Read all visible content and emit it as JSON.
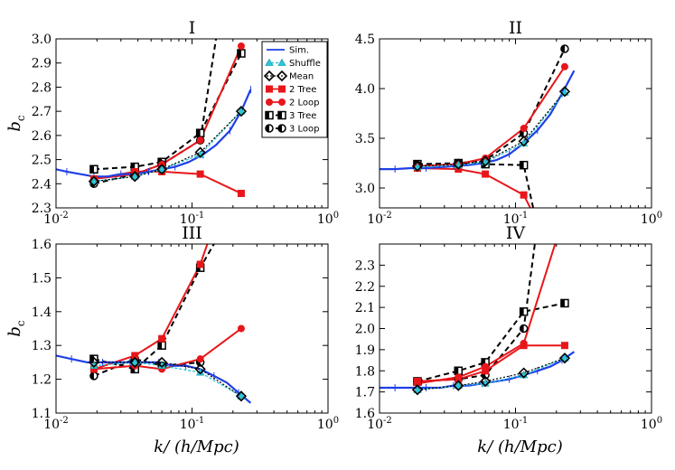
{
  "figure": {
    "xlabel": "k/     (h/Mpc)",
    "ylabel": "b_c"
  },
  "legend": [
    {
      "label": "Sim.",
      "series": "sim"
    },
    {
      "label": "Shuffle",
      "series": "shuffle"
    },
    {
      "label": "Mean",
      "series": "mean"
    },
    {
      "label": "2 Tree",
      "series": "tree2"
    },
    {
      "label": "2 Loop",
      "series": "loop2"
    },
    {
      "label": "3 Tree",
      "series": "tree3"
    },
    {
      "label": "3 Loop",
      "series": "loop3"
    }
  ],
  "colors": {
    "sim": "#1f3fe6",
    "shuffle": "#2ec8d8",
    "model2": "#e8161a",
    "model3": "#000000"
  },
  "chart_data": [
    {
      "type": "line",
      "title": "I",
      "xscale": "log",
      "xlim": [
        0.01,
        1
      ],
      "ylim": [
        2.3,
        3.0
      ],
      "yticks": [
        2.3,
        2.4,
        2.5,
        2.6,
        2.7,
        2.8,
        2.9,
        3.0
      ],
      "xticklabels": [
        "10^-2",
        "10^-1",
        "10^0"
      ],
      "series": [
        {
          "name": "Sim.",
          "key": "sim",
          "x": [
            0.01,
            0.012,
            0.015,
            0.019,
            0.024,
            0.03,
            0.038,
            0.048,
            0.06,
            0.075,
            0.095,
            0.12,
            0.15,
            0.19,
            0.23,
            0.27
          ],
          "y": [
            2.46,
            2.45,
            2.44,
            2.43,
            2.43,
            2.44,
            2.44,
            2.45,
            2.46,
            2.47,
            2.49,
            2.52,
            2.56,
            2.62,
            2.7,
            2.79
          ]
        },
        {
          "name": "Shuffle",
          "key": "shuffle",
          "x": [
            0.019,
            0.038,
            0.06,
            0.115,
            0.23
          ],
          "y": [
            2.41,
            2.43,
            2.46,
            2.52,
            2.7
          ]
        },
        {
          "name": "Mean",
          "key": "mean",
          "x": [
            0.019,
            0.038,
            0.06,
            0.115,
            0.23
          ],
          "y": [
            2.41,
            2.43,
            2.46,
            2.53,
            2.7
          ]
        },
        {
          "name": "2 Tree",
          "key": "tree2",
          "x": [
            0.019,
            0.038,
            0.06,
            0.115,
            0.23
          ],
          "y": [
            2.42,
            2.45,
            2.45,
            2.44,
            2.36
          ]
        },
        {
          "name": "2 Loop",
          "key": "loop2",
          "x": [
            0.019,
            0.038,
            0.06,
            0.115,
            0.23
          ],
          "y": [
            2.42,
            2.44,
            2.48,
            2.58,
            2.97
          ]
        },
        {
          "name": "3 Tree",
          "key": "tree3",
          "x": [
            0.019,
            0.038,
            0.06,
            0.115,
            0.23
          ],
          "y": [
            2.46,
            2.47,
            2.49,
            2.61,
            2.94
          ]
        },
        {
          "name": "3 Loop",
          "key": "loop3",
          "x": [
            0.019,
            0.038,
            0.06,
            0.115,
            0.16
          ],
          "y": [
            2.4,
            2.44,
            2.48,
            2.58,
            3.1
          ],
          "markers": [
            true,
            true,
            true,
            true,
            false
          ]
        }
      ]
    },
    {
      "type": "line",
      "title": "II",
      "xscale": "log",
      "xlim": [
        0.01,
        1
      ],
      "ylim": [
        2.8,
        4.5
      ],
      "yticks": [
        3.0,
        3.5,
        4.0,
        4.5
      ],
      "xticklabels": [
        "10^-2",
        "10^-1",
        "10^0"
      ],
      "series": [
        {
          "name": "Sim.",
          "key": "sim",
          "x": [
            0.01,
            0.013,
            0.017,
            0.022,
            0.028,
            0.035,
            0.045,
            0.057,
            0.072,
            0.09,
            0.115,
            0.145,
            0.18,
            0.22,
            0.27
          ],
          "y": [
            3.19,
            3.19,
            3.2,
            3.2,
            3.21,
            3.22,
            3.23,
            3.25,
            3.28,
            3.34,
            3.45,
            3.58,
            3.74,
            3.95,
            4.18
          ]
        },
        {
          "name": "Shuffle",
          "key": "shuffle",
          "x": [
            0.019,
            0.038,
            0.06,
            0.115,
            0.23
          ],
          "y": [
            3.21,
            3.23,
            3.26,
            3.45,
            3.96
          ]
        },
        {
          "name": "Mean",
          "key": "mean",
          "x": [
            0.019,
            0.038,
            0.06,
            0.115,
            0.23
          ],
          "y": [
            3.22,
            3.24,
            3.27,
            3.47,
            3.97
          ]
        },
        {
          "name": "2 Tree",
          "key": "tree2",
          "x": [
            0.019,
            0.038,
            0.06,
            0.115,
            0.14
          ],
          "y": [
            3.2,
            3.19,
            3.14,
            2.93,
            2.7
          ],
          "markers": [
            true,
            true,
            true,
            true,
            false
          ]
        },
        {
          "name": "2 Loop",
          "key": "loop2",
          "x": [
            0.019,
            0.038,
            0.06,
            0.115,
            0.23
          ],
          "y": [
            3.22,
            3.24,
            3.3,
            3.6,
            4.22
          ]
        },
        {
          "name": "3 Tree",
          "key": "tree3",
          "x": [
            0.019,
            0.038,
            0.06,
            0.115,
            0.14
          ],
          "y": [
            3.24,
            3.25,
            3.24,
            3.23,
            2.7
          ],
          "markers": [
            true,
            true,
            true,
            true,
            false
          ]
        },
        {
          "name": "3 Loop",
          "key": "loop3",
          "x": [
            0.019,
            0.038,
            0.06,
            0.115,
            0.23
          ],
          "y": [
            3.23,
            3.25,
            3.28,
            3.55,
            4.4
          ]
        }
      ]
    },
    {
      "type": "line",
      "title": "III",
      "xscale": "log",
      "xlim": [
        0.01,
        1
      ],
      "ylim": [
        1.1,
        1.6
      ],
      "yticks": [
        1.1,
        1.2,
        1.3,
        1.4,
        1.5,
        1.6
      ],
      "xticklabels": [
        "10^-2",
        "10^-1",
        "10^0"
      ],
      "series": [
        {
          "name": "Sim.",
          "key": "sim",
          "x": [
            0.01,
            0.013,
            0.017,
            0.022,
            0.028,
            0.035,
            0.045,
            0.057,
            0.072,
            0.09,
            0.115,
            0.145,
            0.18,
            0.22,
            0.27
          ],
          "y": [
            1.27,
            1.26,
            1.25,
            1.25,
            1.25,
            1.25,
            1.25,
            1.25,
            1.24,
            1.24,
            1.23,
            1.21,
            1.19,
            1.16,
            1.13
          ]
        },
        {
          "name": "Shuffle",
          "key": "shuffle",
          "x": [
            0.019,
            0.038,
            0.06,
            0.115,
            0.23
          ],
          "y": [
            1.24,
            1.25,
            1.24,
            1.22,
            1.15
          ]
        },
        {
          "name": "Mean",
          "key": "mean",
          "x": [
            0.019,
            0.038,
            0.06,
            0.115,
            0.23
          ],
          "y": [
            1.25,
            1.25,
            1.25,
            1.23,
            1.15
          ]
        },
        {
          "name": "2 Tree",
          "key": "tree2",
          "x": [
            0.019,
            0.038,
            0.06,
            0.115,
            0.135
          ],
          "y": [
            1.23,
            1.27,
            1.32,
            1.54,
            1.62
          ],
          "markers": [
            true,
            true,
            true,
            true,
            false
          ]
        },
        {
          "name": "2 Loop",
          "key": "loop2",
          "x": [
            0.019,
            0.038,
            0.06,
            0.115,
            0.23
          ],
          "y": [
            1.23,
            1.24,
            1.23,
            1.26,
            1.35
          ]
        },
        {
          "name": "3 Tree",
          "key": "tree3",
          "x": [
            0.019,
            0.038,
            0.06,
            0.115,
            0.155
          ],
          "y": [
            1.26,
            1.23,
            1.3,
            1.53,
            1.62
          ],
          "markers": [
            true,
            true,
            true,
            true,
            false
          ]
        },
        {
          "name": "3 Loop",
          "key": "loop3",
          "x": [
            0.019,
            0.038,
            0.06,
            0.115
          ],
          "y": [
            1.21,
            1.26,
            1.24,
            1.25
          ]
        }
      ]
    },
    {
      "type": "line",
      "title": "IV",
      "xscale": "log",
      "xlim": [
        0.01,
        1
      ],
      "ylim": [
        1.6,
        2.4
      ],
      "yticks": [
        1.6,
        1.7,
        1.8,
        1.9,
        2.0,
        2.1,
        2.2,
        2.3
      ],
      "xticklabels": [
        "10^-2",
        "10^-1",
        "10^0"
      ],
      "series": [
        {
          "name": "Sim.",
          "key": "sim",
          "x": [
            0.01,
            0.013,
            0.017,
            0.022,
            0.028,
            0.035,
            0.045,
            0.057,
            0.072,
            0.09,
            0.115,
            0.145,
            0.18,
            0.22,
            0.27
          ],
          "y": [
            1.72,
            1.72,
            1.72,
            1.72,
            1.72,
            1.73,
            1.73,
            1.74,
            1.75,
            1.76,
            1.78,
            1.8,
            1.82,
            1.85,
            1.89
          ]
        },
        {
          "name": "Shuffle",
          "key": "shuffle",
          "x": [
            0.019,
            0.038,
            0.06,
            0.115,
            0.23
          ],
          "y": [
            1.71,
            1.73,
            1.74,
            1.78,
            1.86
          ]
        },
        {
          "name": "Mean",
          "key": "mean",
          "x": [
            0.019,
            0.038,
            0.06,
            0.115,
            0.23
          ],
          "y": [
            1.71,
            1.73,
            1.75,
            1.79,
            1.86
          ]
        },
        {
          "name": "2 Tree",
          "key": "tree2",
          "x": [
            0.019,
            0.038,
            0.06,
            0.115,
            0.23
          ],
          "y": [
            1.75,
            1.76,
            1.8,
            1.92,
            1.92
          ]
        },
        {
          "name": "2 Loop",
          "key": "loop2",
          "x": [
            0.019,
            0.038,
            0.06,
            0.115,
            0.2
          ],
          "y": [
            1.74,
            1.77,
            1.82,
            1.93,
            2.42
          ],
          "markers": [
            true,
            true,
            true,
            true,
            false
          ]
        },
        {
          "name": "3 Tree",
          "key": "tree3",
          "x": [
            0.019,
            0.038,
            0.06,
            0.115,
            0.23
          ],
          "y": [
            1.75,
            1.8,
            1.84,
            2.08,
            2.12
          ]
        },
        {
          "name": "3 Loop",
          "key": "loop3",
          "x": [
            0.019,
            0.038,
            0.06,
            0.115,
            0.14
          ],
          "y": [
            1.75,
            1.76,
            1.78,
            2.0,
            2.42
          ],
          "markers": [
            true,
            true,
            true,
            true,
            false
          ]
        }
      ]
    }
  ]
}
